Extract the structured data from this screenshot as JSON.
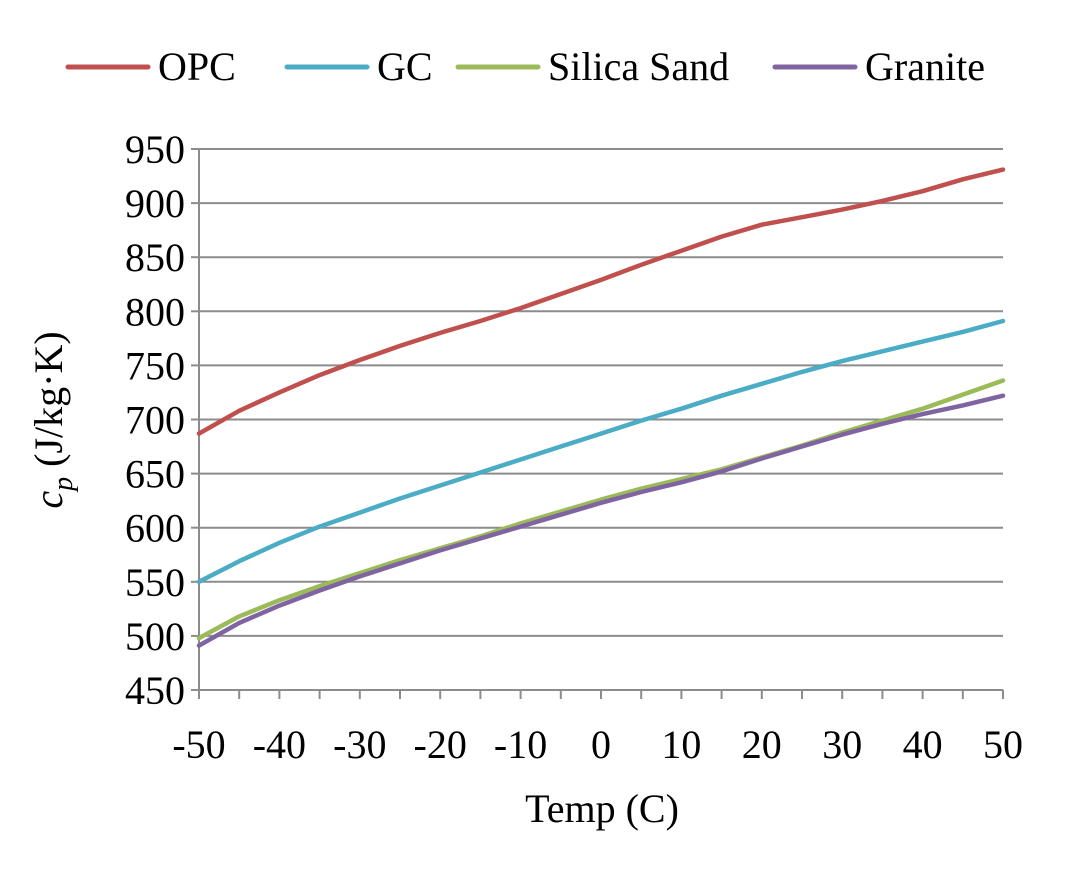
{
  "chart_data": {
    "type": "line",
    "title": "",
    "xlabel": "Temp (C)",
    "ylabel_symbol": "c",
    "ylabel_subscript": "p",
    "ylabel_units": " (J/kg·K)",
    "xlim": [
      -50,
      50
    ],
    "ylim": [
      450,
      950
    ],
    "x_ticks": [
      -50,
      -40,
      -30,
      -20,
      -10,
      0,
      10,
      20,
      30,
      40,
      50
    ],
    "x_tick_labels": [
      "-50",
      "-40",
      "-30",
      "-20",
      "-10",
      "0",
      "10",
      "20",
      "30",
      "40",
      "50"
    ],
    "y_ticks": [
      450,
      500,
      550,
      600,
      650,
      700,
      750,
      800,
      850,
      900,
      950
    ],
    "y_tick_labels": [
      "450",
      "500",
      "550",
      "600",
      "650",
      "700",
      "750",
      "800",
      "850",
      "900",
      "950"
    ],
    "grid": "horizontal",
    "legend_position": "top",
    "x": [
      -50,
      -45,
      -40,
      -35,
      -30,
      -25,
      -20,
      -15,
      -10,
      -5,
      0,
      5,
      10,
      15,
      20,
      25,
      30,
      35,
      40,
      45,
      50
    ],
    "series": [
      {
        "name": "OPC",
        "color": "#c0504d",
        "values": [
          687,
          708,
          725,
          741,
          755,
          768,
          780,
          791,
          803,
          816,
          829,
          843,
          856,
          869,
          880,
          887,
          894,
          902,
          911,
          922,
          931
        ]
      },
      {
        "name": "GC",
        "color": "#4bacc6",
        "values": [
          550,
          569,
          586,
          601,
          614,
          627,
          639,
          651,
          663,
          675,
          687,
          699,
          710,
          722,
          733,
          744,
          754,
          763,
          772,
          781,
          791
        ]
      },
      {
        "name": "Silica Sand",
        "color": "#9bbb59",
        "values": [
          498,
          518,
          533,
          546,
          558,
          570,
          581,
          592,
          604,
          615,
          626,
          636,
          645,
          654,
          665,
          676,
          688,
          699,
          710,
          723,
          736
        ]
      },
      {
        "name": "Granite",
        "color": "#8064a2",
        "values": [
          491,
          512,
          528,
          542,
          555,
          567,
          579,
          590,
          601,
          612,
          623,
          633,
          642,
          652,
          664,
          675,
          686,
          696,
          705,
          713,
          722
        ]
      }
    ]
  }
}
